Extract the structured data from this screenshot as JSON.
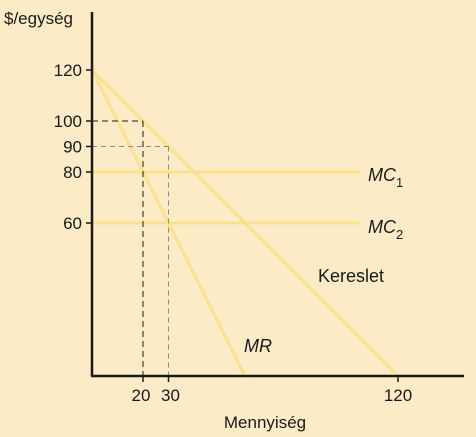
{
  "chart_data": {
    "type": "line",
    "ylabel": "$/egység",
    "xlabel": "Mennyiség",
    "xlim": [
      0,
      120
    ],
    "ylim": [
      0,
      120
    ],
    "x_ticks": [
      20,
      30,
      120
    ],
    "y_ticks": [
      120,
      100,
      90,
      80,
      60
    ],
    "x_tick_labels": [
      "20",
      "30",
      "120"
    ],
    "y_tick_labels": [
      "120",
      "100",
      "90",
      "80",
      "60"
    ],
    "colors": {
      "line": "#fce18c",
      "background": "#fcebc7",
      "axis": "#1a1a1a"
    },
    "lines": [
      {
        "id": "demand",
        "label": "Kereslet",
        "italic": false,
        "sub": "",
        "points": [
          [
            0,
            120
          ],
          [
            120,
            0
          ]
        ]
      },
      {
        "id": "mr",
        "label": "MR",
        "italic": true,
        "sub": "",
        "points": [
          [
            0,
            120
          ],
          [
            60,
            0
          ]
        ]
      },
      {
        "id": "mc1",
        "label": "MC",
        "italic": true,
        "sub": "1",
        "points": [
          [
            0,
            80
          ],
          [
            105,
            80
          ]
        ]
      },
      {
        "id": "mc2",
        "label": "MC",
        "italic": true,
        "sub": "2",
        "points": [
          [
            0,
            60
          ],
          [
            105,
            60
          ]
        ]
      }
    ],
    "guides": [
      {
        "id": "guide-100",
        "x": 20,
        "y": 100,
        "style": "black-dashed"
      },
      {
        "id": "guide-90",
        "x": 30,
        "y": 90,
        "style": "gray-dashed"
      }
    ]
  }
}
